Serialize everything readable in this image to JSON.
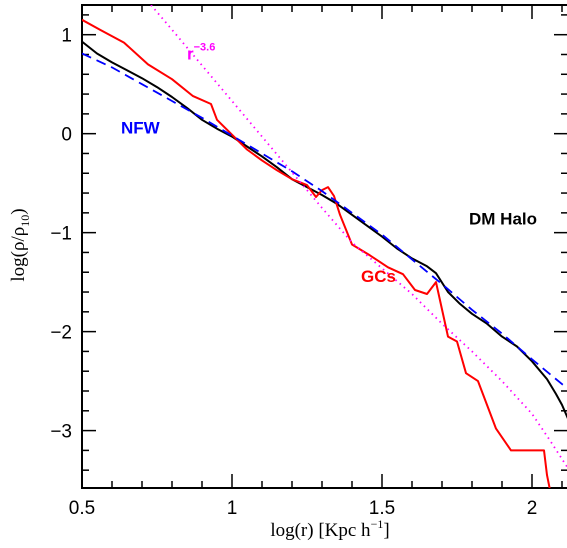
{
  "chart_data": {
    "type": "line",
    "xlabel": {
      "main": "log(r) [Kpc h",
      "sup": "−1",
      "end": "]"
    },
    "ylabel": {
      "main": "log(ρ/ρ",
      "sub": "10",
      "end": ")"
    },
    "x_scale": "log(r)",
    "xlim": [
      0.5,
      2.12
    ],
    "ylim": [
      -3.58,
      1.3
    ],
    "xticks": [
      {
        "value": 0.5,
        "label": "0.5"
      },
      {
        "value": 1.0,
        "label": "1"
      },
      {
        "value": 1.5,
        "label": "1.5"
      },
      {
        "value": 2.0,
        "label": "2"
      }
    ],
    "yticks": [
      {
        "value": 1,
        "label": "1"
      },
      {
        "value": 0,
        "label": "0"
      },
      {
        "value": -1,
        "label": "−1"
      },
      {
        "value": -2,
        "label": "−2"
      },
      {
        "value": -3,
        "label": "−3"
      }
    ],
    "grid": false,
    "series": [
      {
        "name": "DM Halo",
        "color": "#000000",
        "style": "solid",
        "x": [
          0.5,
          0.55,
          0.6,
          0.65,
          0.7,
          0.75,
          0.8,
          0.85,
          0.9,
          0.95,
          1.0,
          1.05,
          1.1,
          1.15,
          1.2,
          1.25,
          1.3,
          1.35,
          1.4,
          1.45,
          1.5,
          1.55,
          1.6,
          1.65,
          1.68,
          1.72,
          1.76,
          1.8,
          1.85,
          1.9,
          1.95,
          2.0,
          2.05,
          2.08,
          2.1,
          2.12
        ],
        "y": [
          0.93,
          0.81,
          0.72,
          0.64,
          0.56,
          0.47,
          0.37,
          0.26,
          0.14,
          0.05,
          -0.03,
          -0.13,
          -0.23,
          -0.34,
          -0.46,
          -0.54,
          -0.62,
          -0.71,
          -0.82,
          -0.93,
          -1.04,
          -1.16,
          -1.26,
          -1.34,
          -1.41,
          -1.6,
          -1.72,
          -1.82,
          -1.92,
          -2.05,
          -2.15,
          -2.3,
          -2.48,
          -2.63,
          -2.74,
          -2.88
        ]
      },
      {
        "name": "GCs",
        "color": "#ff0000",
        "style": "solid",
        "x": [
          0.5,
          0.56,
          0.64,
          0.72,
          0.8,
          0.87,
          0.93,
          0.95,
          1.0,
          1.05,
          1.1,
          1.15,
          1.2,
          1.25,
          1.28,
          1.3,
          1.32,
          1.34,
          1.36,
          1.4,
          1.46,
          1.52,
          1.57,
          1.61,
          1.65,
          1.68,
          1.72,
          1.75,
          1.78,
          1.82,
          1.88,
          1.93,
          1.99,
          2.04,
          2.05,
          2.06
        ],
        "y": [
          1.15,
          1.05,
          0.92,
          0.7,
          0.55,
          0.38,
          0.3,
          0.14,
          -0.01,
          -0.16,
          -0.27,
          -0.37,
          -0.46,
          -0.52,
          -0.64,
          -0.57,
          -0.54,
          -0.63,
          -0.82,
          -1.12,
          -1.23,
          -1.35,
          -1.42,
          -1.58,
          -1.62,
          -1.5,
          -2.05,
          -2.1,
          -2.42,
          -2.5,
          -2.98,
          -3.2,
          -3.2,
          -3.2,
          -3.45,
          -3.6
        ]
      },
      {
        "name": "NFW",
        "color": "#0000ff",
        "style": "dashed",
        "x": [
          0.5,
          0.6,
          0.7,
          0.8,
          0.9,
          1.0,
          1.1,
          1.2,
          1.3,
          1.4,
          1.5,
          1.6,
          1.7,
          1.8,
          1.9,
          2.0,
          2.1,
          2.12
        ],
        "y": [
          0.81,
          0.67,
          0.5,
          0.33,
          0.16,
          -0.02,
          -0.2,
          -0.38,
          -0.58,
          -0.8,
          -1.02,
          -1.27,
          -1.52,
          -1.78,
          -2.02,
          -2.28,
          -2.53,
          -2.58
        ]
      },
      {
        "name": "r^-3.6",
        "color": "#ff00ff",
        "style": "dotted",
        "x": [
          0.73,
          0.8,
          0.9,
          1.0,
          1.1,
          1.2,
          1.3,
          1.4,
          1.5,
          1.6,
          1.7,
          1.8,
          1.9,
          2.0,
          2.06,
          2.12
        ],
        "y": [
          1.3,
          1.05,
          0.69,
          0.33,
          -0.03,
          -0.39,
          -0.75,
          -1.1,
          -1.36,
          -1.62,
          -1.92,
          -2.2,
          -2.5,
          -2.83,
          -3.1,
          -3.38
        ]
      }
    ],
    "annotations": [
      {
        "text": "NFW",
        "color": "#0000ff",
        "x": 0.63,
        "y": 0.0
      },
      {
        "text": "DM Halo",
        "color": "#000000",
        "x": 1.79,
        "y": -0.92
      },
      {
        "text": "GCs",
        "color": "#ff0000",
        "x": 1.43,
        "y": -1.5
      },
      {
        "text": "r",
        "sup": "−3.6",
        "color": "#ff00ff",
        "x": 0.85,
        "y": 0.75
      }
    ]
  }
}
